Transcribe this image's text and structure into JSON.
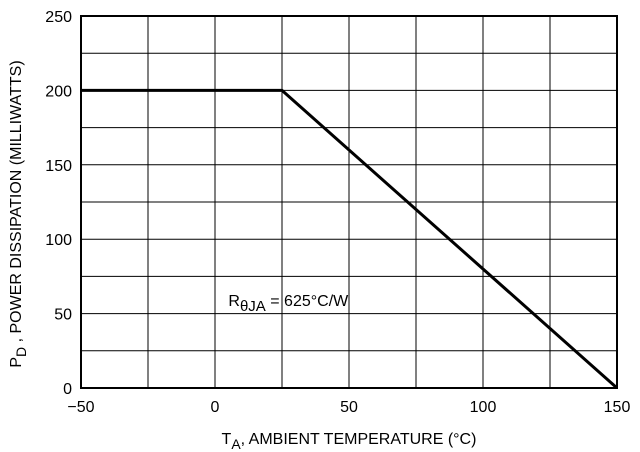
{
  "chart_data": {
    "type": "line",
    "title": "",
    "xlabel": {
      "main": "T",
      "sub": "A",
      "rest": ", AMBIENT TEMPERATURE (°C)"
    },
    "ylabel": {
      "main": "P",
      "sub": "D",
      "rest": " , POWER DISSIPATION (MILLIWATTS)"
    },
    "xlim": [
      -50,
      150
    ],
    "ylim": [
      0,
      250
    ],
    "x_ticks": [
      -50,
      0,
      50,
      100,
      150
    ],
    "x_tick_labels": [
      "−50",
      "0",
      "50",
      "100",
      "150"
    ],
    "y_ticks": [
      0,
      50,
      100,
      150,
      200,
      250
    ],
    "y_tick_labels": [
      "0",
      "50",
      "100",
      "150",
      "200",
      "250"
    ],
    "grid": true,
    "grid_x_step": 25,
    "grid_y_step": 25,
    "series": [
      {
        "x": [
          -50,
          25,
          150
        ],
        "y": [
          200,
          200,
          0
        ]
      }
    ],
    "annotation": {
      "main": "R",
      "sub": "θJA",
      "rest": " = 625°C/W",
      "x": 5,
      "y": 55
    }
  }
}
